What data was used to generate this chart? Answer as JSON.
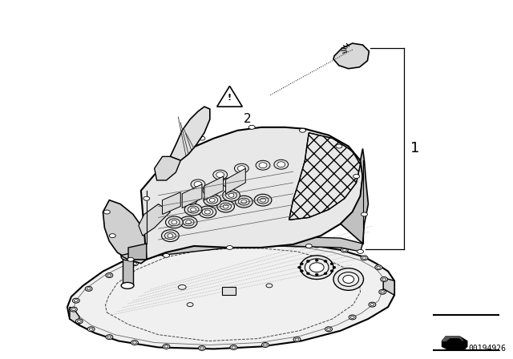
{
  "background_color": "#ffffff",
  "line_color": "#000000",
  "part_number": "00194926",
  "label_1": "1",
  "label_2": "2",
  "fig_width": 6.4,
  "fig_height": 4.48,
  "dpi": 100,
  "mechatronic_color": "#e8e8e8",
  "pan_color": "#eeeeee",
  "shadow_color": "#cccccc",
  "hatch_color": "#555555"
}
